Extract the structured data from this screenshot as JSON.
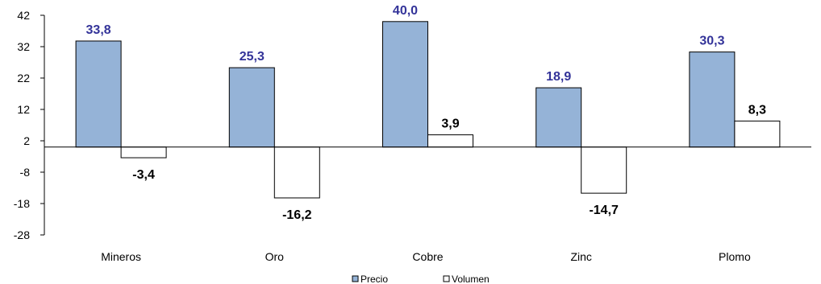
{
  "chart_data": {
    "type": "bar",
    "categories": [
      "Mineros",
      "Oro",
      "Cobre",
      "Zinc",
      "Plomo"
    ],
    "series": [
      {
        "name": "Precio",
        "values": [
          33.8,
          25.3,
          40.0,
          18.9,
          30.3
        ],
        "labels": [
          "33,8",
          "25,3",
          "40,0",
          "18,9",
          "30,3"
        ],
        "color": "#95b3d7",
        "label_color": "#333399"
      },
      {
        "name": "Volumen",
        "values": [
          -3.4,
          -16.2,
          3.9,
          -14.7,
          8.3
        ],
        "labels": [
          "-3,4",
          "-16,2",
          "3,9",
          "-14,7",
          "8,3"
        ],
        "color": "#ffffff",
        "label_color": "#000000"
      }
    ],
    "yticks": [
      42,
      32,
      22,
      12,
      2,
      -8,
      -18,
      -28
    ],
    "ylim": [
      -28,
      42
    ],
    "baseline": 0,
    "grid": false,
    "legend_position": "bottom-center"
  }
}
